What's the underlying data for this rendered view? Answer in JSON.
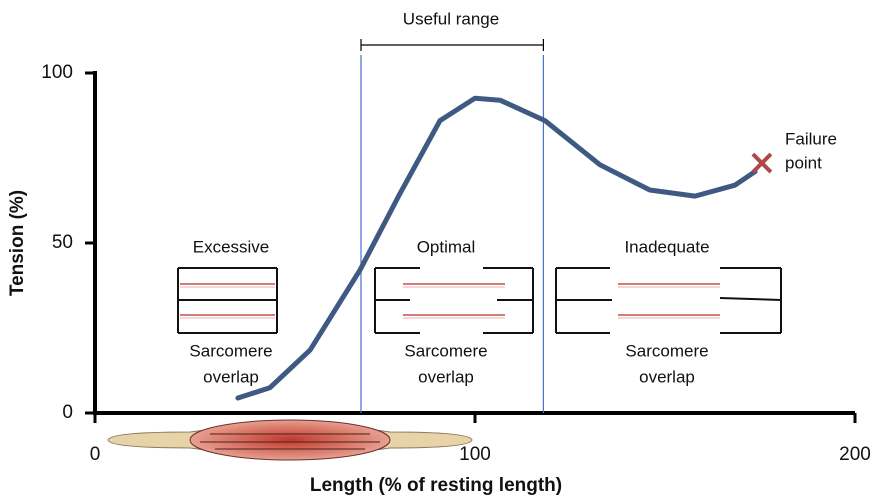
{
  "chart_data": {
    "type": "line",
    "x": [
      37.6,
      46,
      56.6,
      69.7,
      80,
      90.8,
      100,
      106.6,
      118.4,
      132.9,
      146,
      157.9,
      168.4,
      173.7
    ],
    "series": [
      {
        "color": "#3f5a82",
        "values": [
          4.4,
          7.4,
          18.5,
          42,
          64,
          86,
          92.6,
          92,
          86,
          73,
          65.6,
          63.8,
          67,
          71
        ]
      }
    ],
    "xlim": [
      0,
      200
    ],
    "xticks": [
      0,
      100,
      200
    ],
    "ylim": [
      0,
      100
    ],
    "yticks": [
      0,
      50,
      100
    ],
    "xlabel": "Length (% of resting length)",
    "ylabel": "Tension (%)",
    "useful_range": {
      "label": "Useful range",
      "range": [
        70,
        118
      ]
    },
    "failure_point": {
      "x": 175.5,
      "y": 73.5,
      "label": [
        "Failure",
        "point"
      ],
      "color": "#b04a4a"
    },
    "panels": [
      {
        "title": "Excessive",
        "caption": [
          "Sarcomere",
          "overlap"
        ]
      },
      {
        "title": "Optimal",
        "caption": [
          "Sarcomere",
          "overlap"
        ]
      },
      {
        "title": "Inadequate",
        "caption": [
          "Sarcomere",
          "overlap"
        ]
      }
    ]
  }
}
